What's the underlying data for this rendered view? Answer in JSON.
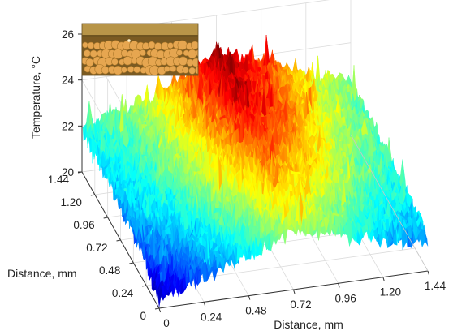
{
  "chart_data": {
    "type": "surface",
    "title": "",
    "xlabel": "Distance, mm",
    "ylabel": "Distance, mm",
    "zlabel": "Temperature, °C",
    "x_ticks": [
      "0",
      "0.24",
      "0.48",
      "0.72",
      "0.96",
      "1.20",
      "1.44"
    ],
    "y_ticks": [
      "0",
      "0.24",
      "0.48",
      "0.72",
      "0.96",
      "1.20",
      "1.44"
    ],
    "z_ticks": [
      "20",
      "22",
      "24",
      "26"
    ],
    "xlim": [
      0,
      1.44
    ],
    "ylim": [
      0,
      1.44
    ],
    "zlim": [
      20,
      26
    ],
    "colormap": "jet",
    "grid": true,
    "surface_profile": {
      "x": [
        0,
        0.24,
        0.48,
        0.72,
        0.96,
        1.2,
        1.44
      ],
      "y": [
        0,
        0.24,
        0.48,
        0.72,
        0.96,
        1.2,
        1.44
      ],
      "z": [
        [
          20.4,
          21.2,
          21.8,
          22.6,
          22.3,
          21.6,
          21.4
        ],
        [
          21.0,
          21.5,
          22.2,
          23.0,
          22.6,
          21.9,
          21.6
        ],
        [
          21.3,
          21.8,
          22.6,
          23.4,
          23.0,
          22.2,
          21.8
        ],
        [
          21.5,
          22.0,
          22.8,
          23.8,
          23.3,
          22.4,
          22.0
        ],
        [
          21.7,
          22.1,
          23.0,
          24.1,
          23.5,
          22.6,
          22.1
        ],
        [
          21.8,
          22.2,
          23.1,
          24.3,
          23.6,
          22.7,
          22.2
        ],
        [
          21.9,
          22.3,
          23.2,
          24.4,
          23.7,
          22.8,
          22.3
        ]
      ]
    },
    "inset": {
      "description": "micrograph of particle layer",
      "colors": {
        "background": "#8a6a2a",
        "band": "#b89548",
        "particle": "#e6a650"
      }
    }
  }
}
